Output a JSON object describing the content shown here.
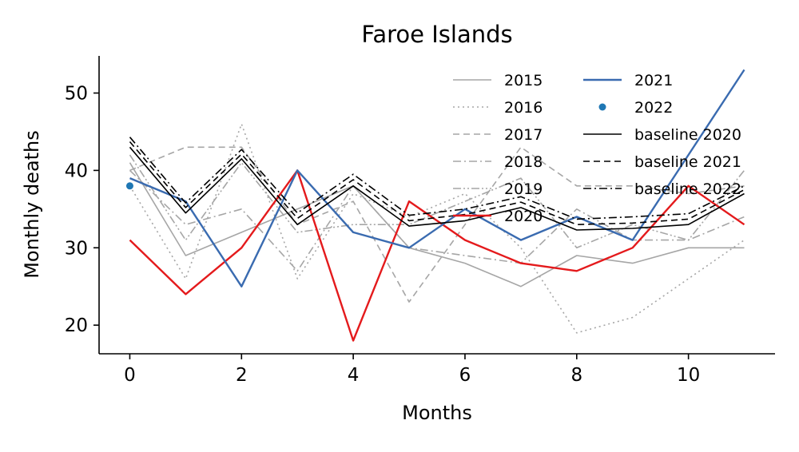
{
  "chart_data": {
    "type": "line",
    "title": "Faroe Islands",
    "xlabel": "Months",
    "ylabel": "Monthly deaths",
    "xlim": [
      -0.55,
      11.55
    ],
    "ylim": [
      16.3,
      54.8
    ],
    "xticks": [
      0,
      2,
      4,
      6,
      8,
      10
    ],
    "yticks": [
      20,
      30,
      40,
      50
    ],
    "x": [
      0,
      1,
      2,
      3,
      4,
      5,
      6,
      7,
      8,
      9,
      10,
      11
    ],
    "grid": false,
    "legend_position": "top-right",
    "series": [
      {
        "name": "2015",
        "color": "#a6a6a6",
        "dash": "solid",
        "width": 1.6,
        "values": [
          41,
          29,
          32,
          35,
          38,
          30,
          28,
          25,
          29,
          28,
          30,
          30
        ]
      },
      {
        "name": "2016",
        "color": "#a6a6a6",
        "dash": "dotted",
        "width": 1.6,
        "values": [
          38,
          26,
          46,
          26,
          37,
          34,
          37,
          30,
          19,
          21,
          26,
          31
        ]
      },
      {
        "name": "2017",
        "color": "#a6a6a6",
        "dash": "dashed",
        "width": 1.6,
        "values": [
          40,
          43,
          43,
          33,
          36,
          23,
          33,
          43,
          38,
          38,
          37,
          38
        ]
      },
      {
        "name": "2018",
        "color": "#a6a6a6",
        "dash": "dashdot",
        "width": 1.6,
        "values": [
          40,
          33,
          35,
          27,
          38,
          30,
          29,
          28,
          35,
          31,
          31,
          34
        ]
      },
      {
        "name": "2019",
        "color": "#a6a6a6",
        "dash": "dashdotdot",
        "width": 1.6,
        "values": [
          42,
          31,
          41,
          32,
          33,
          33,
          36,
          39,
          30,
          33,
          31,
          40
        ]
      },
      {
        "name": "2020",
        "color": "#e41a1c",
        "dash": "solid",
        "width": 2.4,
        "values": [
          31,
          24,
          30,
          40,
          18,
          36,
          31,
          28,
          27,
          30,
          38,
          33
        ]
      },
      {
        "name": "2021",
        "color": "#3a6bb0",
        "dash": "solid",
        "width": 2.4,
        "values": [
          39,
          36,
          25,
          40,
          32,
          30,
          35,
          31,
          34,
          31,
          42,
          53
        ]
      },
      {
        "name": "2022",
        "color": "#1f77b4",
        "marker": "point",
        "x": [
          0
        ],
        "values": [
          38
        ]
      },
      {
        "name": "baseline 2020",
        "color": "#000000",
        "dash": "solid",
        "width": 1.6,
        "values": [
          43,
          34.5,
          41.5,
          33,
          38,
          32.8,
          33.5,
          35.2,
          32.3,
          32.5,
          33,
          37
        ]
      },
      {
        "name": "baseline 2021",
        "color": "#000000",
        "dash": "dashed",
        "width": 1.6,
        "values": [
          43.7,
          35.2,
          42.1,
          33.8,
          38.8,
          33.5,
          34.3,
          35.9,
          33,
          33.2,
          33.7,
          37.5
        ]
      },
      {
        "name": "baseline 2022",
        "color": "#000000",
        "dash": "dashdot",
        "width": 1.6,
        "values": [
          44.3,
          35.8,
          42.7,
          34.5,
          39.5,
          34.2,
          35,
          36.6,
          33.7,
          34,
          34.4,
          38
        ]
      }
    ]
  }
}
